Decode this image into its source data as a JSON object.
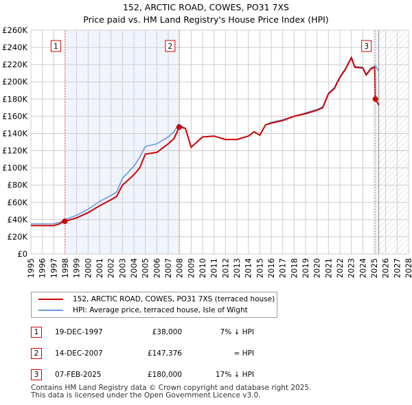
{
  "chart_data": {
    "type": "line",
    "title": "152, ARCTIC ROAD, COWES, PO31 7XS",
    "subtitle": "Price paid vs. HM Land Registry's House Price Index (HPI)",
    "xlim": [
      1995,
      2028
    ],
    "ylim": [
      0,
      260000
    ],
    "x_ticks": [
      "1995",
      "1996",
      "1997",
      "1998",
      "1999",
      "2000",
      "2001",
      "2002",
      "2003",
      "2004",
      "2005",
      "2006",
      "2007",
      "2008",
      "2009",
      "2010",
      "2011",
      "2012",
      "2013",
      "2014",
      "2015",
      "2016",
      "2017",
      "2018",
      "2019",
      "2020",
      "2021",
      "2022",
      "2023",
      "2024",
      "2025",
      "2026",
      "2027",
      "2028"
    ],
    "y_ticks": [
      "£0",
      "£20K",
      "£40K",
      "£60K",
      "£80K",
      "£100K",
      "£120K",
      "£140K",
      "£160K",
      "£180K",
      "£200K",
      "£220K",
      "£240K",
      "£260K"
    ],
    "grid": true,
    "series": [
      {
        "name": "152, ARCTIC ROAD, COWES, PO31 7XS (terraced house)",
        "color": "#cc0000",
        "x": [
          1995,
          1996,
          1997,
          1997.5,
          1997.96,
          1999,
          2000,
          2001,
          2002,
          2002.5,
          2003,
          2004,
          2004.5,
          2005,
          2006,
          2006.5,
          2007,
          2007.5,
          2007.96,
          2008.5,
          2009,
          2009.5,
          2010,
          2011,
          2012,
          2013,
          2014,
          2014.5,
          2015,
          2015.5,
          2016,
          2017,
          2018,
          2019,
          2020,
          2020.5,
          2021,
          2021.5,
          2022,
          2022.5,
          2023,
          2023.3,
          2024,
          2024.3,
          2024.7,
          2025.05,
          2025.1,
          2025.4
        ],
        "y": [
          33000,
          33000,
          33000,
          35000,
          38000,
          42000,
          48000,
          56000,
          63000,
          67000,
          80000,
          92000,
          100000,
          116000,
          118000,
          123000,
          128000,
          134000,
          147376,
          146000,
          124000,
          130000,
          136000,
          137000,
          133000,
          133000,
          137000,
          142000,
          138000,
          150000,
          152000,
          155000,
          160000,
          163000,
          167000,
          170000,
          186000,
          192000,
          205000,
          215000,
          228000,
          217000,
          216000,
          208000,
          215000,
          217000,
          180000,
          173000
        ]
      },
      {
        "name": "HPI: Average price, terraced house, Isle of Wight",
        "color": "#6699dd",
        "x": [
          1995,
          1996,
          1997,
          1997.5,
          1998,
          1999,
          2000,
          2001,
          2002,
          2002.5,
          2003,
          2004,
          2004.5,
          2005,
          2006,
          2006.5,
          2007,
          2007.5,
          2007.9,
          2008.5,
          2009,
          2009.5,
          2010,
          2011,
          2012,
          2013,
          2014,
          2014.5,
          2015,
          2015.5,
          2016,
          2017,
          2018,
          2019,
          2020,
          2020.5,
          2021,
          2021.5,
          2022,
          2022.5,
          2023,
          2023.3,
          2024,
          2024.3,
          2024.7,
          2025.1,
          2025.4
        ],
        "y": [
          35000,
          35000,
          35000,
          37000,
          40000,
          45000,
          52000,
          61000,
          68000,
          72000,
          88000,
          102000,
          112000,
          125000,
          128000,
          132000,
          136000,
          142000,
          151000,
          146000,
          124000,
          130000,
          136000,
          137000,
          133000,
          133000,
          137000,
          142000,
          138000,
          150000,
          153000,
          156000,
          160000,
          164000,
          168000,
          171000,
          187000,
          193000,
          206000,
          216000,
          229000,
          218000,
          217000,
          209000,
          216000,
          219000,
          212000
        ]
      }
    ],
    "sales": [
      {
        "n": "1",
        "x": 1997.96,
        "y": 38000
      },
      {
        "n": "2",
        "x": 2007.95,
        "y": 147376
      },
      {
        "n": "3",
        "x": 2025.1,
        "y": 180000
      }
    ]
  },
  "table": [
    {
      "num": "1",
      "date": "19-DEC-1997",
      "price": "£38,000",
      "hpi": "7% ↓ HPI"
    },
    {
      "num": "2",
      "date": "14-DEC-2007",
      "price": "£147,376",
      "hpi": "≈ HPI"
    },
    {
      "num": "3",
      "date": "07-FEB-2025",
      "price": "£180,000",
      "hpi": "17% ↓ HPI"
    }
  ],
  "footer": [
    "Contains HM Land Registry data © Crown copyright and database right 2025.",
    "This data is licensed under the Open Government Licence v3.0."
  ]
}
